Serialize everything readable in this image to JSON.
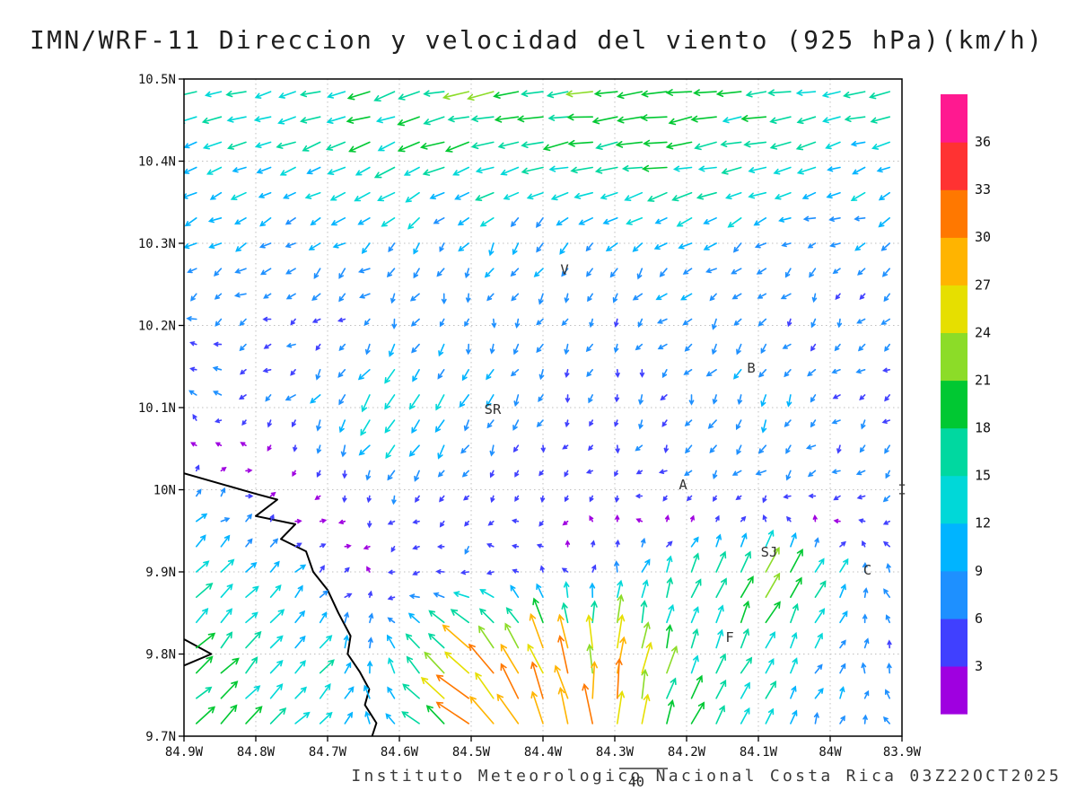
{
  "title": "IMN/WRF-11 Direccion y velocidad del viento (925 hPa)(km/h)",
  "footer": "Instituto Meteorologico Nacional Costa Rica 03Z22OCT2025",
  "chart_data": {
    "type": "vector_field",
    "title": "IMN/WRF-11 Direccion y velocidad del viento (925 hPa)(km/h)",
    "model": "IMN/WRF-11",
    "variable": "Direccion y velocidad del viento",
    "level": "925 hPa",
    "units": "km/h",
    "valid_time": "03Z22OCT2025",
    "x_axis": {
      "ticks": [
        "84.9W",
        "84.8W",
        "84.7W",
        "84.6W",
        "84.5W",
        "84.4W",
        "84.3W",
        "84.2W",
        "84.1W",
        "84W",
        "83.9W"
      ],
      "values": [
        -84.9,
        -84.8,
        -84.7,
        -84.6,
        -84.5,
        -84.4,
        -84.3,
        -84.2,
        -84.1,
        -84.0,
        -83.9
      ]
    },
    "y_axis": {
      "ticks": [
        "9.7N",
        "9.8N",
        "9.9N",
        "10N",
        "10.1N",
        "10.2N",
        "10.3N",
        "10.4N",
        "10.5N"
      ],
      "values": [
        9.7,
        9.8,
        9.9,
        10.0,
        10.1,
        10.2,
        10.3,
        10.4,
        10.5
      ]
    },
    "grid": "dotted",
    "colorbar": {
      "levels": [
        3,
        6,
        9,
        12,
        15,
        18,
        21,
        24,
        27,
        30,
        33,
        36
      ],
      "colors": [
        "#9f00e0",
        "#4040ff",
        "#1e90ff",
        "#00b4ff",
        "#00d8d8",
        "#00d8a0",
        "#00c832",
        "#8cdc28",
        "#e6df00",
        "#ffb400",
        "#ff7800",
        "#ff3232",
        "#ff1990"
      ],
      "position": "right"
    },
    "reference_vector": {
      "value": 40,
      "label": "40"
    },
    "stations": [
      {
        "label": "V",
        "lon": -84.37,
        "lat": 10.268
      },
      {
        "label": "SR",
        "lon": -84.47,
        "lat": 10.098
      },
      {
        "label": "B",
        "lon": -84.11,
        "lat": 10.148
      },
      {
        "label": "A",
        "lon": -84.205,
        "lat": 10.006
      },
      {
        "label": "SJ",
        "lon": -84.085,
        "lat": 9.924
      },
      {
        "label": "C",
        "lon": -83.948,
        "lat": 9.902
      },
      {
        "label": "F",
        "lon": -84.14,
        "lat": 9.82
      },
      {
        "label": "I",
        "lon": -83.9,
        "lat": 10.0
      }
    ],
    "coastline": [
      [
        [
          -84.9,
          10.02
        ],
        [
          -84.84,
          10.005
        ],
        [
          -84.8,
          9.995
        ],
        [
          -84.77,
          9.988
        ],
        [
          -84.8,
          9.968
        ],
        [
          -84.745,
          9.958
        ],
        [
          -84.765,
          9.94
        ],
        [
          -84.73,
          9.925
        ],
        [
          -84.72,
          9.9
        ],
        [
          -84.7,
          9.878
        ],
        [
          -84.685,
          9.85
        ],
        [
          -84.668,
          9.822
        ],
        [
          -84.672,
          9.8
        ],
        [
          -84.655,
          9.778
        ],
        [
          -84.642,
          9.757
        ],
        [
          -84.648,
          9.738
        ],
        [
          -84.632,
          9.716
        ],
        [
          -84.638,
          9.7
        ]
      ],
      [
        [
          -84.9,
          9.818
        ],
        [
          -84.862,
          9.8
        ],
        [
          -84.9,
          9.786
        ]
      ]
    ],
    "wind_grid": {
      "lons": [
        -84.9,
        -84.8,
        -84.7,
        -84.6,
        -84.5,
        -84.4,
        -84.3,
        -84.2,
        -84.1,
        -84.0,
        -83.9
      ],
      "lats": [
        9.7,
        9.8,
        9.9,
        10.0,
        10.1,
        10.2,
        10.3,
        10.4,
        10.5
      ],
      "u": [
        [
          14,
          12,
          10,
          -10,
          -24,
          -14,
          2,
          8,
          6,
          2,
          -2
        ],
        [
          12,
          10,
          8,
          -6,
          -18,
          -10,
          4,
          6,
          8,
          4,
          -2
        ],
        [
          10,
          8,
          4,
          -4,
          -6,
          -4,
          2,
          5,
          10,
          6,
          -4
        ],
        [
          6,
          3,
          -2,
          -4,
          -3,
          -2,
          -3,
          -4,
          -5,
          -5,
          -6
        ],
        [
          -6,
          -5,
          -6,
          -8,
          -5,
          -3,
          -2,
          -3,
          -5,
          -4,
          -4
        ],
        [
          -5,
          -6,
          -4,
          -3,
          -2,
          -3,
          -4,
          -5,
          -4,
          -3,
          -5
        ],
        [
          -8,
          -9,
          -7,
          -6,
          -5,
          -4,
          -6,
          -8,
          -7,
          -6,
          -8
        ],
        [
          -11,
          -12,
          -13,
          -15,
          -16,
          -17,
          -18,
          -17,
          -15,
          -12,
          -11
        ],
        [
          -14,
          -15,
          -15,
          -17,
          -18,
          -19,
          -19,
          -19,
          -18,
          -16,
          -15
        ]
      ],
      "v": [
        [
          12,
          12,
          10,
          8,
          18,
          30,
          30,
          18,
          12,
          8,
          6
        ],
        [
          12,
          12,
          10,
          10,
          20,
          26,
          26,
          16,
          14,
          8,
          6
        ],
        [
          10,
          8,
          4,
          -2,
          -2,
          3,
          8,
          12,
          22,
          10,
          6
        ],
        [
          4,
          2,
          -3,
          -5,
          -4,
          -3,
          -3,
          -4,
          -5,
          -4,
          -3
        ],
        [
          2,
          -2,
          -8,
          -14,
          -10,
          -6,
          -5,
          -7,
          -8,
          -5,
          -4
        ],
        [
          -3,
          -2,
          -4,
          -6,
          -7,
          -6,
          -5,
          -6,
          -6,
          -5,
          -4
        ],
        [
          -5,
          -4,
          -5,
          -6,
          -7,
          -8,
          -7,
          -6,
          -5,
          -4,
          -4
        ],
        [
          -4,
          -5,
          -6,
          -6,
          -5,
          -4,
          -3,
          -3,
          -4,
          -4,
          -4
        ],
        [
          -3,
          -4,
          -4,
          -5,
          -4,
          -3,
          -2,
          -2,
          -3,
          -3,
          -3
        ]
      ]
    }
  }
}
